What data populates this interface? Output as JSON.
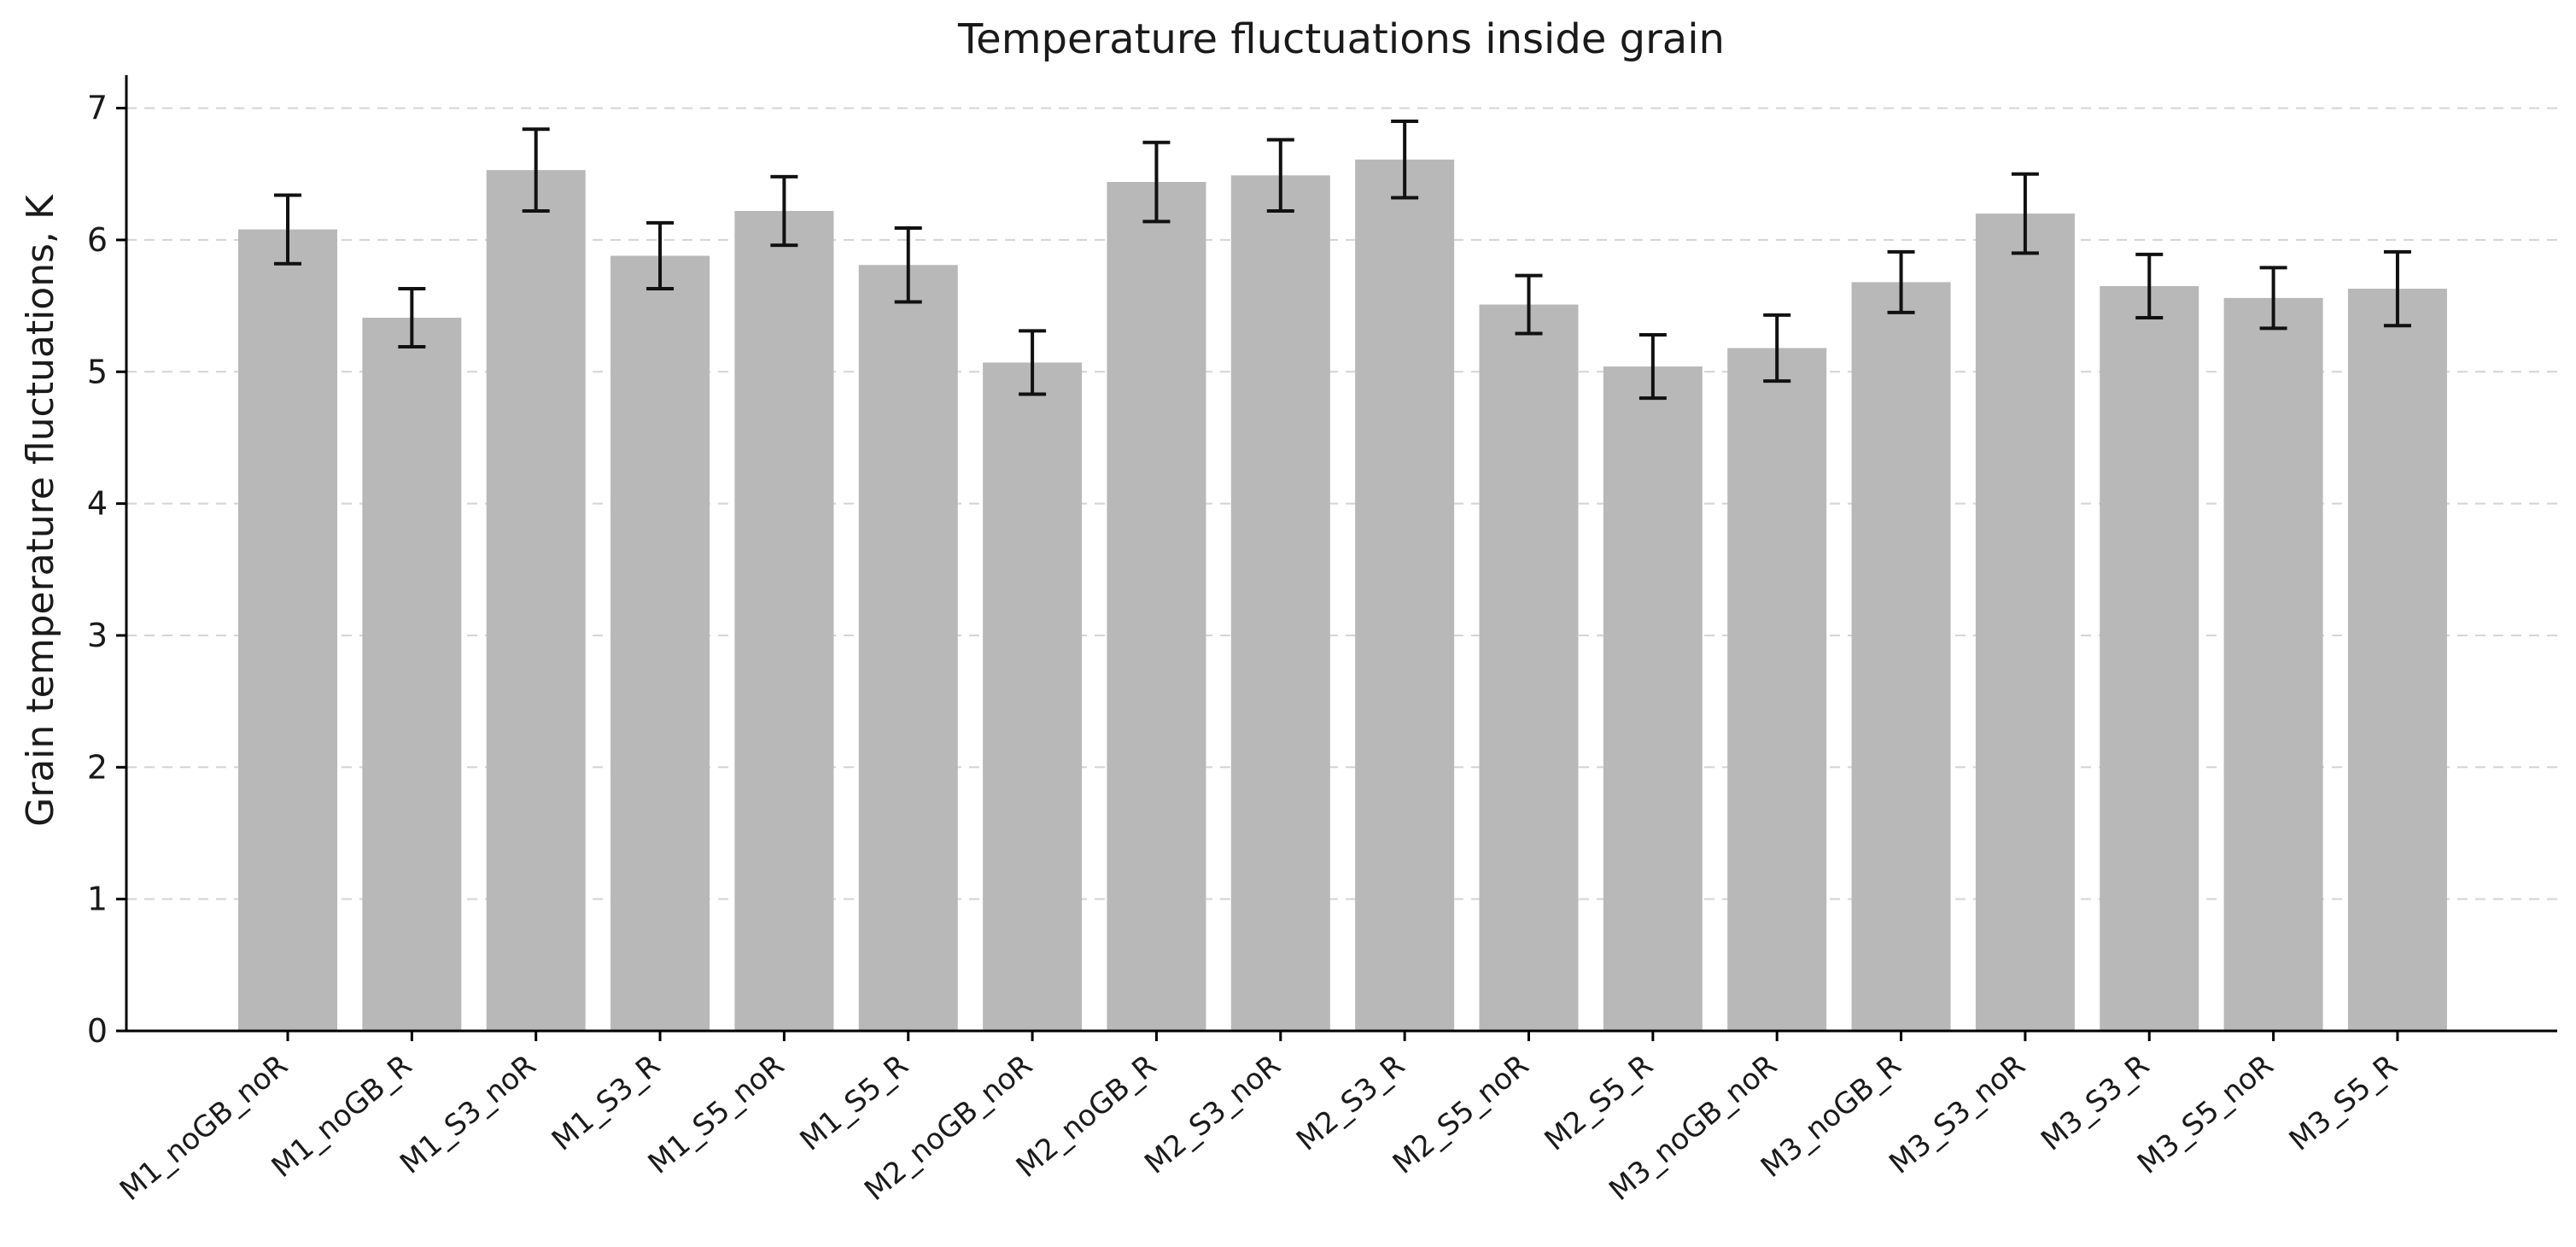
{
  "chart_data": {
    "type": "bar",
    "title": "Temperature fluctuations inside grain",
    "xlabel": "",
    "ylabel": "Grain temperature fluctuations, K",
    "ylim": [
      0,
      7.25
    ],
    "yticks": [
      0,
      1,
      2,
      3,
      4,
      5,
      6,
      7
    ],
    "grid": "y-dashed",
    "bar_color": "#b8b8b8",
    "categories": [
      "M1_noGB_noR",
      "M1_noGB_R",
      "M1_S3_noR",
      "M1_S3_R",
      "M1_S5_noR",
      "M1_S5_R",
      "M2_noGB_noR",
      "M2_noGB_R",
      "M2_S3_noR",
      "M2_S3_R",
      "M2_S5_noR",
      "M2_S5_R",
      "M3_noGB_noR",
      "M3_noGB_R",
      "M3_S3_noR",
      "M3_S3_R",
      "M3_S5_noR",
      "M3_S5_R"
    ],
    "values": [
      6.08,
      5.41,
      6.53,
      5.88,
      6.22,
      5.81,
      5.07,
      6.44,
      6.49,
      6.61,
      5.51,
      5.04,
      5.18,
      5.68,
      6.2,
      5.65,
      5.56,
      5.63
    ],
    "errors": [
      0.26,
      0.22,
      0.31,
      0.25,
      0.26,
      0.28,
      0.24,
      0.3,
      0.27,
      0.29,
      0.22,
      0.24,
      0.25,
      0.23,
      0.3,
      0.24,
      0.23,
      0.28
    ]
  }
}
